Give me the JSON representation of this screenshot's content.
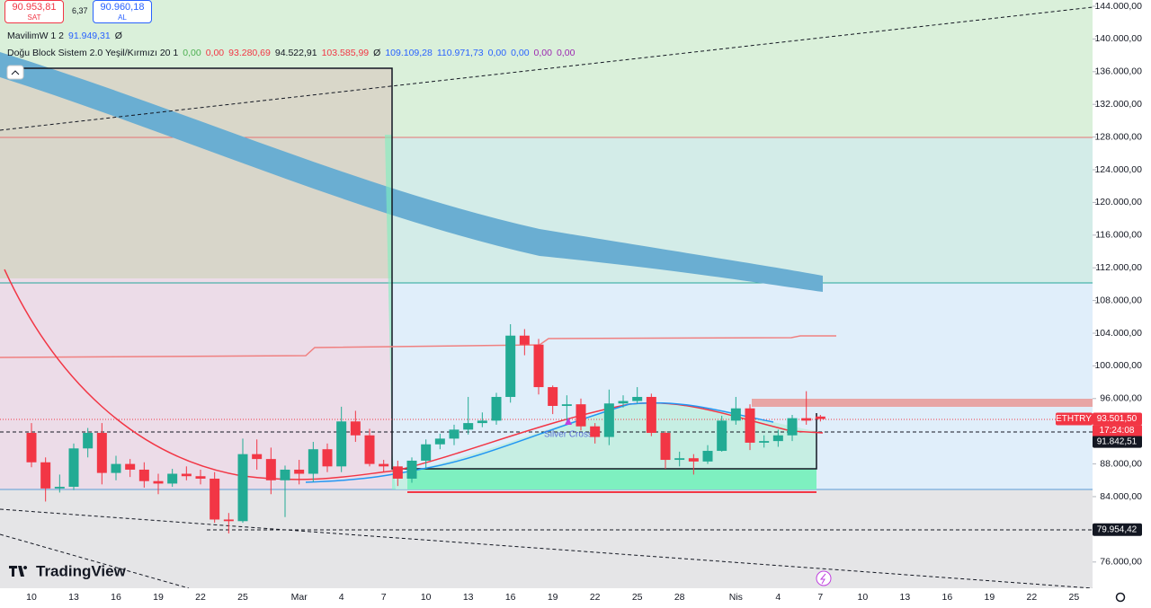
{
  "header": {
    "sell_price": "90.953,81",
    "sell_label": "SAT",
    "spread": "6,37",
    "buy_price": "90.960,18",
    "buy_label": "AL"
  },
  "legend": [
    {
      "name": "MavilimW 1 2",
      "values": [
        "91.949,31",
        "Ø"
      ],
      "colors": [
        "#2962ff",
        "#131722"
      ]
    },
    {
      "name": "Doğu Block Sistem 2.0 Yeşil/Kırmızı 20 1",
      "values": [
        "0,00",
        "0,00",
        "93.280,69",
        "94.522,91",
        "103.585,99",
        "Ø",
        "109.109,28",
        "110.971,73",
        "0,00",
        "0,00",
        "0,00",
        "0,00"
      ],
      "colors": [
        "#4caf50",
        "#f23645",
        "#f23645",
        "#131722",
        "#f23645",
        "#131722",
        "#2962ff",
        "#2962ff",
        "#2962ff",
        "#2962ff",
        "#9c27b0",
        "#9c27b0"
      ]
    }
  ],
  "annotation": "Silver Cross",
  "brand": "TradingView",
  "chart_data": {
    "type": "candlestick",
    "symbol": "ETHTRY",
    "countdown": "17:24:08",
    "up_color": "#22ab94",
    "down_color": "#f23645",
    "grid": false,
    "categories": [
      "10",
      null,
      null,
      "13",
      null,
      null,
      "16",
      null,
      null,
      "19",
      null,
      null,
      "22",
      null,
      null,
      "25",
      null,
      null,
      null,
      "Mar",
      null,
      null,
      "4",
      null,
      null,
      "7",
      null,
      null,
      "10",
      null,
      null,
      "13",
      null,
      null,
      "16",
      null,
      null,
      "19",
      null,
      null,
      "22",
      null,
      null,
      "25",
      null,
      null,
      "28",
      null,
      null,
      null,
      "Nis",
      null,
      null,
      "4",
      null,
      null,
      "7",
      null,
      null,
      "10",
      null,
      null,
      "13",
      null,
      null,
      "16",
      null,
      null,
      "19",
      null,
      null,
      "22",
      null,
      null,
      "25"
    ],
    "open": [
      91800,
      88200,
      85000,
      85200,
      89900,
      91800,
      86900,
      88000,
      87300,
      85900,
      85600,
      86800,
      86500,
      86200,
      81200,
      81000,
      89200,
      88600,
      86000,
      87300,
      86800,
      89800,
      87700,
      93200,
      91500,
      88000,
      87700,
      86200,
      88400,
      90400,
      91100,
      92200,
      93000,
      93300,
      96200,
      103700,
      102600,
      97400,
      95100,
      95300,
      92600,
      91300,
      95400,
      95700,
      96200,
      91800,
      88500,
      88700,
      88300,
      89600,
      93300,
      94800,
      90600,
      90800,
      91500,
      93600,
      93800,
      null,
      null,
      null,
      null,
      null,
      null,
      null,
      null,
      null,
      null,
      null,
      null,
      null,
      null,
      null,
      null,
      null,
      null
    ],
    "high": [
      93000,
      88800,
      86700,
      90500,
      92400,
      93000,
      89000,
      88600,
      88200,
      86800,
      87400,
      87700,
      87300,
      87000,
      82000,
      91100,
      91000,
      90000,
      87800,
      88500,
      90700,
      90500,
      95000,
      94500,
      92300,
      88500,
      88400,
      88800,
      91000,
      91700,
      92800,
      96200,
      94300,
      96700,
      105100,
      104500,
      103300,
      97600,
      96400,
      96000,
      93000,
      97100,
      96400,
      97400,
      96600,
      92000,
      89500,
      89200,
      90300,
      93900,
      96200,
      95300,
      91500,
      92200,
      94000,
      96900,
      94000,
      null,
      null,
      null,
      null,
      null,
      null,
      null,
      null,
      null,
      null,
      null,
      null,
      null,
      null,
      null,
      null,
      null,
      null
    ],
    "low": [
      87600,
      83400,
      84500,
      84800,
      88800,
      85500,
      86000,
      86400,
      85100,
      84300,
      85200,
      86000,
      85500,
      80800,
      79500,
      80800,
      87300,
      84300,
      81500,
      85500,
      85800,
      87000,
      87000,
      90700,
      87700,
      87000,
      85300,
      85700,
      87500,
      89800,
      90300,
      91600,
      92500,
      92800,
      95500,
      101300,
      96500,
      94100,
      93300,
      92100,
      90500,
      90300,
      94900,
      95400,
      91400,
      87400,
      87700,
      86700,
      88000,
      89500,
      92800,
      89700,
      90000,
      90100,
      90800,
      92800,
      93200,
      null,
      null,
      null,
      null,
      null,
      null,
      null,
      null,
      null,
      null,
      null,
      null,
      null,
      null,
      null,
      null,
      null,
      null
    ],
    "close": [
      88200,
      85000,
      85200,
      89900,
      91800,
      86900,
      88000,
      87300,
      85900,
      85600,
      86800,
      86500,
      86200,
      81200,
      81000,
      89200,
      88600,
      86000,
      87300,
      86800,
      89800,
      87700,
      93200,
      91500,
      88000,
      87700,
      86200,
      88400,
      90400,
      91100,
      92200,
      93000,
      93300,
      96200,
      103700,
      102600,
      97400,
      95100,
      95300,
      92600,
      91300,
      95400,
      95700,
      96200,
      91800,
      88500,
      88700,
      88300,
      89600,
      93300,
      94800,
      90600,
      90800,
      91500,
      93600,
      93300,
      93501.5,
      null,
      null,
      null,
      null,
      null,
      null,
      null,
      null,
      null,
      null,
      null,
      null,
      null,
      null,
      null,
      null,
      null,
      null
    ],
    "ylim": [
      72790,
      144770
    ],
    "yticks": [
      {
        "value": 76000,
        "label": "76.000,00"
      },
      {
        "value": 80000,
        "label": "80.000,00"
      },
      {
        "value": 84000,
        "label": "84.000,00"
      },
      {
        "value": 88000,
        "label": "88.000,00"
      },
      {
        "value": 92000,
        "label": "92.000,00"
      },
      {
        "value": 96000,
        "label": "96.000,00"
      },
      {
        "value": 100000,
        "label": "100.000,00"
      },
      {
        "value": 104000,
        "label": "104.000,00"
      },
      {
        "value": 108000,
        "label": "108.000,00"
      },
      {
        "value": 112000,
        "label": "112.000,00"
      },
      {
        "value": 116000,
        "label": "116.000,00"
      },
      {
        "value": 120000,
        "label": "120.000,00"
      },
      {
        "value": 124000,
        "label": "124.000,00"
      },
      {
        "value": 128000,
        "label": "128.000,00"
      },
      {
        "value": 132000,
        "label": "132.000,00"
      },
      {
        "value": 136000,
        "label": "136.000,00"
      },
      {
        "value": 140000,
        "label": "140.000,00"
      },
      {
        "value": 144000,
        "label": "144.000,00"
      }
    ],
    "price_tags": [
      {
        "value": 93501.5,
        "label": "93.501,50",
        "color": "#f23645"
      },
      {
        "value": 91842.51,
        "label": "91.842,51",
        "color": "#131722"
      },
      {
        "value": 79954.42,
        "label": "79.954,42",
        "color": "#131722"
      }
    ]
  }
}
